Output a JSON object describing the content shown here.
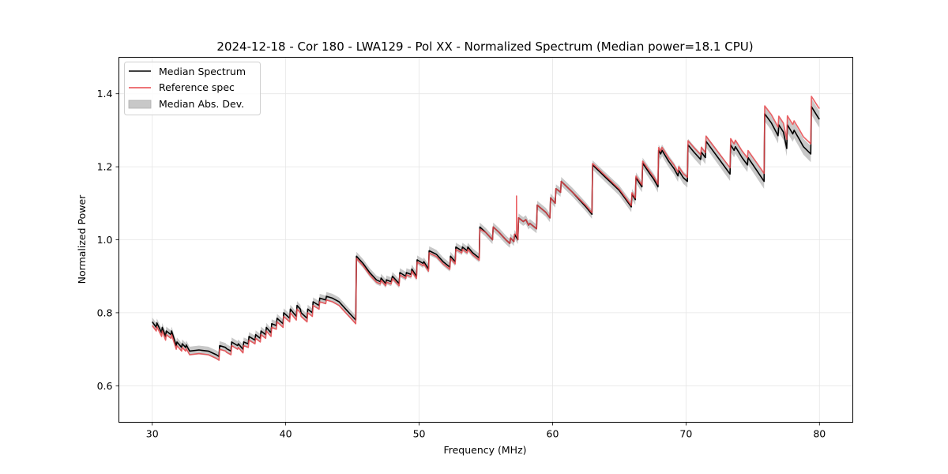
{
  "chart_data": {
    "type": "line",
    "title": "2024-12-18 - Cor 180 - LWA129 - Pol XX - Normalized Spectrum (Median power=18.1 CPU)",
    "xlabel": "Frequency (MHz)",
    "ylabel": "Normalized Power",
    "xlim": [
      27.5,
      82.5
    ],
    "ylim": [
      0.5,
      1.5
    ],
    "xticks": [
      30,
      40,
      50,
      60,
      70,
      80
    ],
    "xtick_labels": [
      "30",
      "40",
      "50",
      "60",
      "70",
      "80"
    ],
    "yticks": [
      0.6,
      0.8,
      1.0,
      1.2,
      1.4
    ],
    "ytick_labels": [
      "0.6",
      "0.8",
      "1.0",
      "1.2",
      "1.4"
    ],
    "grid": true,
    "legend": {
      "placement": "top-left",
      "entries": [
        {
          "label": "Median Spectrum",
          "kind": "line",
          "color": "#000000"
        },
        {
          "label": "Reference spec",
          "kind": "line",
          "color": "#e8474b"
        },
        {
          "label": "Median Abs. Dev.",
          "kind": "band",
          "color": "#c8c8c8"
        }
      ]
    },
    "series": [
      {
        "name": "Median Spectrum",
        "color": "#000000",
        "points": [
          [
            30.0,
            0.775
          ],
          [
            30.3,
            0.76
          ],
          [
            30.35,
            0.772
          ],
          [
            30.7,
            0.745
          ],
          [
            30.75,
            0.76
          ],
          [
            31.0,
            0.735
          ],
          [
            31.05,
            0.75
          ],
          [
            31.4,
            0.74
          ],
          [
            31.45,
            0.75
          ],
          [
            31.8,
            0.71
          ],
          [
            31.85,
            0.72
          ],
          [
            32.2,
            0.705
          ],
          [
            32.25,
            0.715
          ],
          [
            32.5,
            0.705
          ],
          [
            32.55,
            0.712
          ],
          [
            32.8,
            0.695
          ],
          [
            33.5,
            0.698
          ],
          [
            34.2,
            0.695
          ],
          [
            34.8,
            0.685
          ],
          [
            35.0,
            0.68
          ],
          [
            35.05,
            0.71
          ],
          [
            35.5,
            0.705
          ],
          [
            35.55,
            0.702
          ],
          [
            35.9,
            0.695
          ],
          [
            35.95,
            0.72
          ],
          [
            36.4,
            0.71
          ],
          [
            36.45,
            0.715
          ],
          [
            36.8,
            0.7
          ],
          [
            36.85,
            0.72
          ],
          [
            37.2,
            0.715
          ],
          [
            37.25,
            0.735
          ],
          [
            37.7,
            0.725
          ],
          [
            37.75,
            0.74
          ],
          [
            38.1,
            0.73
          ],
          [
            38.15,
            0.75
          ],
          [
            38.5,
            0.74
          ],
          [
            38.55,
            0.76
          ],
          [
            38.9,
            0.745
          ],
          [
            38.95,
            0.77
          ],
          [
            39.3,
            0.765
          ],
          [
            39.35,
            0.785
          ],
          [
            39.8,
            0.77
          ],
          [
            39.85,
            0.8
          ],
          [
            40.3,
            0.785
          ],
          [
            40.35,
            0.81
          ],
          [
            40.8,
            0.79
          ],
          [
            40.85,
            0.82
          ],
          [
            41.1,
            0.81
          ],
          [
            41.15,
            0.8
          ],
          [
            41.6,
            0.785
          ],
          [
            41.65,
            0.81
          ],
          [
            42.0,
            0.8
          ],
          [
            42.05,
            0.83
          ],
          [
            42.5,
            0.82
          ],
          [
            42.55,
            0.84
          ],
          [
            43.0,
            0.835
          ],
          [
            43.05,
            0.845
          ],
          [
            43.5,
            0.84
          ],
          [
            44.0,
            0.83
          ],
          [
            44.5,
            0.81
          ],
          [
            45.0,
            0.79
          ],
          [
            45.25,
            0.78
          ],
          [
            45.3,
            0.955
          ],
          [
            45.8,
            0.935
          ],
          [
            46.3,
            0.91
          ],
          [
            46.8,
            0.89
          ],
          [
            47.1,
            0.885
          ],
          [
            47.15,
            0.895
          ],
          [
            47.5,
            0.88
          ],
          [
            47.55,
            0.89
          ],
          [
            47.9,
            0.885
          ],
          [
            48.0,
            0.9
          ],
          [
            48.5,
            0.88
          ],
          [
            48.55,
            0.91
          ],
          [
            49.0,
            0.9
          ],
          [
            49.05,
            0.91
          ],
          [
            49.4,
            0.905
          ],
          [
            49.45,
            0.92
          ],
          [
            49.8,
            0.9
          ],
          [
            49.85,
            0.945
          ],
          [
            50.3,
            0.935
          ],
          [
            50.35,
            0.94
          ],
          [
            50.7,
            0.92
          ],
          [
            50.75,
            0.97
          ],
          [
            51.3,
            0.96
          ],
          [
            51.8,
            0.94
          ],
          [
            52.3,
            0.925
          ],
          [
            52.35,
            0.955
          ],
          [
            52.7,
            0.94
          ],
          [
            52.75,
            0.98
          ],
          [
            53.2,
            0.97
          ],
          [
            53.25,
            0.98
          ],
          [
            53.6,
            0.97
          ],
          [
            53.65,
            0.98
          ],
          [
            54.0,
            0.965
          ],
          [
            54.5,
            0.95
          ],
          [
            54.55,
            1.035
          ],
          [
            55.0,
            1.02
          ],
          [
            55.5,
            1.0
          ],
          [
            55.55,
            1.035
          ],
          [
            56.0,
            1.02
          ],
          [
            56.5,
            1.0
          ],
          [
            56.8,
            0.99
          ],
          [
            56.85,
            1.005
          ],
          [
            57.1,
            0.995
          ],
          [
            57.15,
            1.015
          ],
          [
            57.4,
            1.0
          ],
          [
            57.45,
            1.06
          ],
          [
            57.8,
            1.05
          ],
          [
            58.0,
            1.055
          ],
          [
            58.2,
            1.04
          ],
          [
            58.3,
            1.045
          ],
          [
            58.8,
            1.03
          ],
          [
            58.85,
            1.095
          ],
          [
            59.5,
            1.075
          ],
          [
            59.8,
            1.06
          ],
          [
            59.85,
            1.115
          ],
          [
            60.2,
            1.1
          ],
          [
            60.25,
            1.14
          ],
          [
            60.6,
            1.13
          ],
          [
            60.65,
            1.16
          ],
          [
            61.5,
            1.13
          ],
          [
            62.5,
            1.09
          ],
          [
            62.95,
            1.07
          ],
          [
            63.0,
            1.205
          ],
          [
            64.0,
            1.17
          ],
          [
            65.0,
            1.135
          ],
          [
            65.5,
            1.11
          ],
          [
            65.9,
            1.09
          ],
          [
            65.95,
            1.125
          ],
          [
            66.2,
            1.11
          ],
          [
            66.25,
            1.17
          ],
          [
            66.7,
            1.145
          ],
          [
            66.75,
            1.21
          ],
          [
            67.3,
            1.18
          ],
          [
            67.6,
            1.165
          ],
          [
            67.9,
            1.145
          ],
          [
            67.95,
            1.245
          ],
          [
            68.1,
            1.235
          ],
          [
            68.2,
            1.245
          ],
          [
            68.7,
            1.215
          ],
          [
            69.1,
            1.195
          ],
          [
            69.4,
            1.175
          ],
          [
            69.45,
            1.19
          ],
          [
            69.8,
            1.17
          ],
          [
            70.1,
            1.16
          ],
          [
            70.15,
            1.26
          ],
          [
            70.6,
            1.24
          ],
          [
            71.1,
            1.22
          ],
          [
            71.15,
            1.24
          ],
          [
            71.45,
            1.225
          ],
          [
            71.5,
            1.27
          ],
          [
            72.0,
            1.245
          ],
          [
            72.5,
            1.22
          ],
          [
            73.0,
            1.195
          ],
          [
            73.3,
            1.18
          ],
          [
            73.35,
            1.26
          ],
          [
            73.6,
            1.245
          ],
          [
            73.7,
            1.255
          ],
          [
            74.2,
            1.225
          ],
          [
            74.6,
            1.205
          ],
          [
            74.65,
            1.225
          ],
          [
            75.3,
            1.19
          ],
          [
            75.85,
            1.16
          ],
          [
            75.9,
            1.345
          ],
          [
            76.4,
            1.32
          ],
          [
            76.9,
            1.285
          ],
          [
            76.95,
            1.315
          ],
          [
            77.3,
            1.295
          ],
          [
            77.55,
            1.25
          ],
          [
            77.6,
            1.315
          ],
          [
            78.0,
            1.29
          ],
          [
            78.1,
            1.3
          ],
          [
            78.5,
            1.275
          ],
          [
            78.8,
            1.255
          ],
          [
            79.35,
            1.235
          ],
          [
            79.4,
            1.365
          ],
          [
            79.9,
            1.335
          ],
          [
            80.0,
            1.33
          ]
        ]
      },
      {
        "name": "Reference spec",
        "color": "#e8474b",
        "offsets_note": "Reference tracks median closely; slightly below below ~55 MHz, above above ~63 MHz; spike to 1.12 at 57.3 MHz",
        "spike": [
          57.3,
          1.12
        ]
      },
      {
        "name": "Median Abs. Dev.",
        "color": "#c8c8c8",
        "band_halfwidth": 0.012
      }
    ]
  }
}
